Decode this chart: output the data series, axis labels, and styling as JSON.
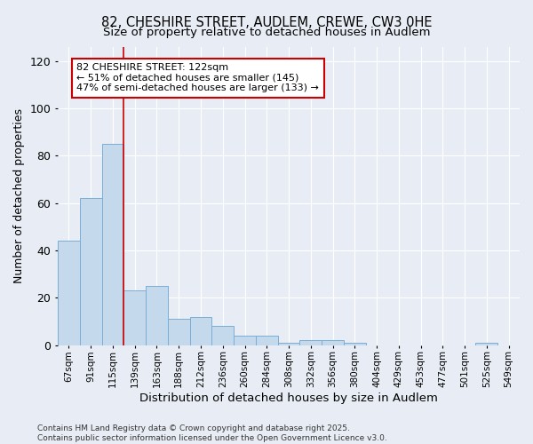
{
  "title": "82, CHESHIRE STREET, AUDLEM, CREWE, CW3 0HE",
  "subtitle": "Size of property relative to detached houses in Audlem",
  "xlabel": "Distribution of detached houses by size in Audlem",
  "ylabel": "Number of detached properties",
  "categories": [
    "67sqm",
    "91sqm",
    "115sqm",
    "139sqm",
    "163sqm",
    "188sqm",
    "212sqm",
    "236sqm",
    "260sqm",
    "284sqm",
    "308sqm",
    "332sqm",
    "356sqm",
    "380sqm",
    "404sqm",
    "429sqm",
    "453sqm",
    "477sqm",
    "501sqm",
    "525sqm",
    "549sqm"
  ],
  "values": [
    44,
    62,
    85,
    23,
    25,
    11,
    12,
    8,
    4,
    4,
    1,
    2,
    2,
    1,
    0,
    0,
    0,
    0,
    0,
    1,
    0
  ],
  "bar_color": "#c5d9ed",
  "bar_edge_color": "#7aaed6",
  "vline_x": 2.5,
  "vline_color": "#cc0000",
  "annotation_text": "82 CHESHIRE STREET: 122sqm\n← 51% of detached houses are smaller (145)\n47% of semi-detached houses are larger (133) →",
  "annotation_box_color": "#ffffff",
  "annotation_box_edge": "#cc0000",
  "bg_color": "#e8edf5",
  "grid_color": "#ffffff",
  "footer": "Contains HM Land Registry data © Crown copyright and database right 2025.\nContains public sector information licensed under the Open Government Licence v3.0.",
  "ylim": [
    0,
    126
  ],
  "yticks": [
    0,
    20,
    40,
    60,
    80,
    100,
    120
  ]
}
